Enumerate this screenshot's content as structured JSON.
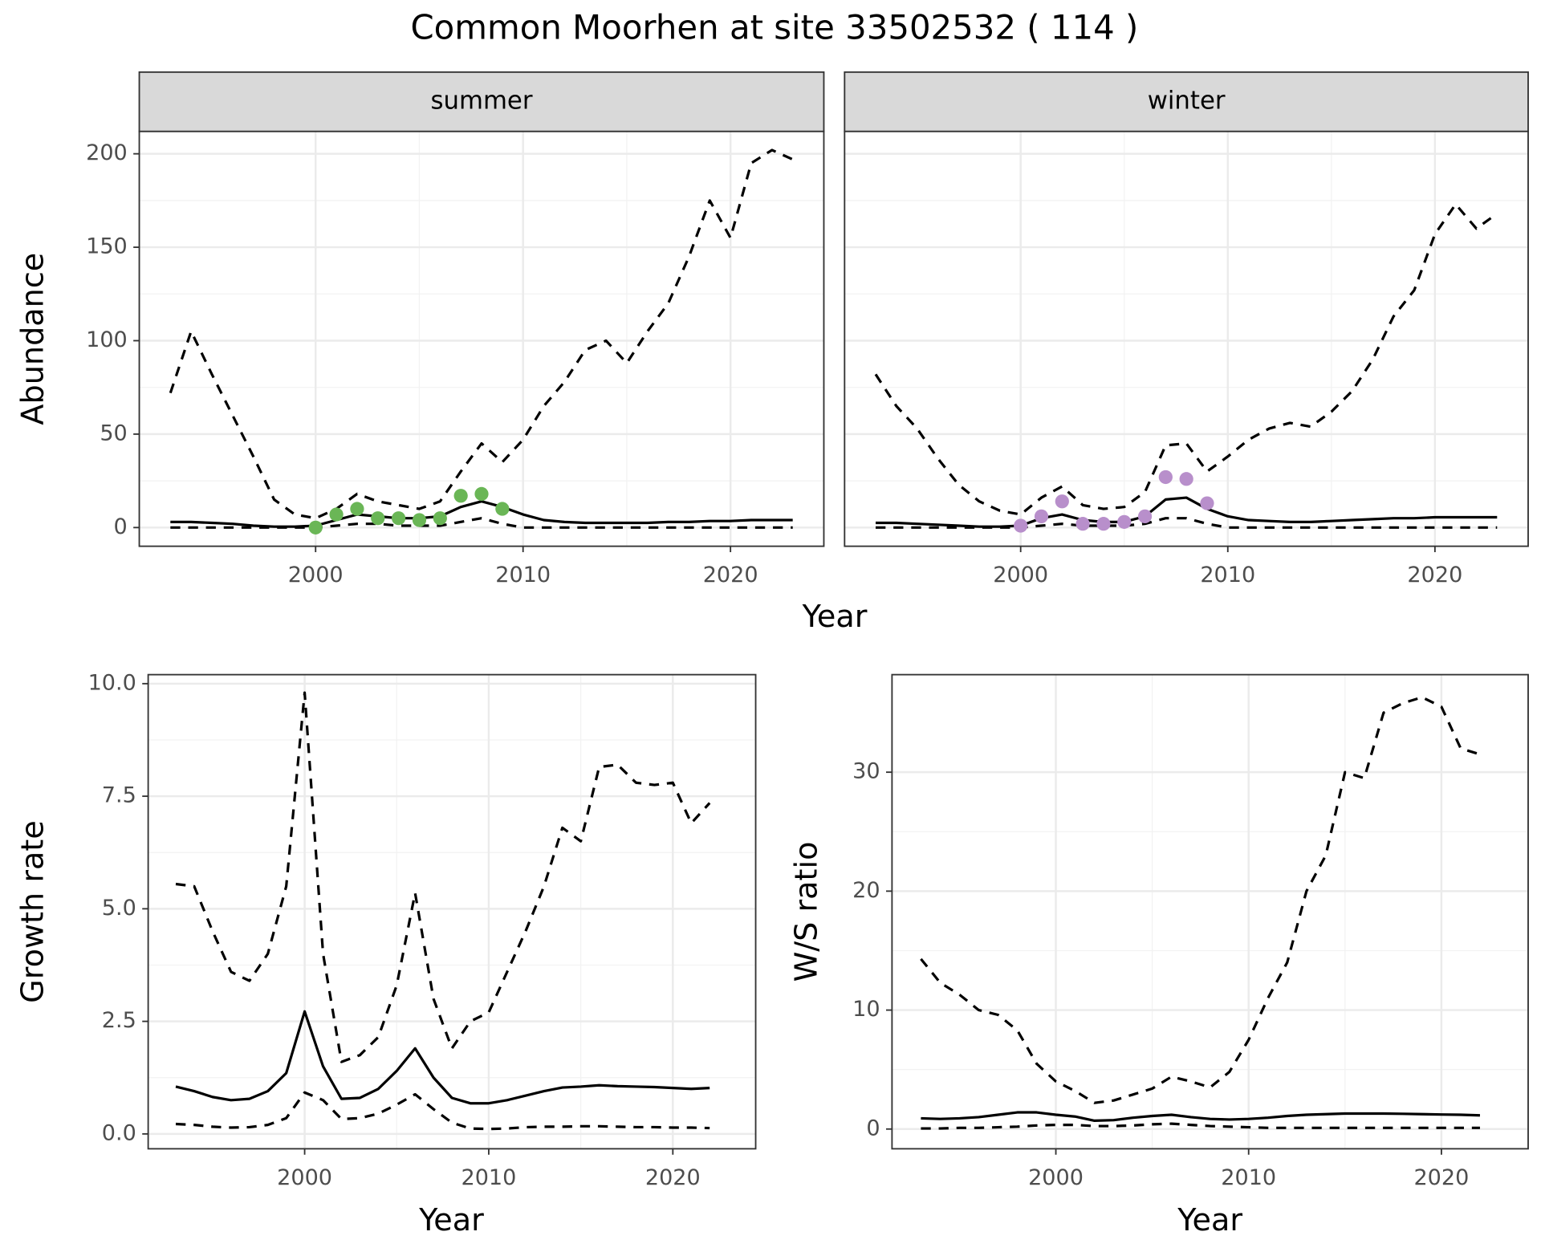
{
  "title": "Common Moorhen at site 33502532 ( 114 )",
  "chart_data": [
    {
      "type": "line",
      "title": "summer",
      "xlabel": "Year",
      "ylabel": "Abundance",
      "x": [
        1993,
        1994,
        1995,
        1996,
        1997,
        1998,
        1999,
        2000,
        2001,
        2002,
        2003,
        2004,
        2005,
        2006,
        2007,
        2008,
        2009,
        2010,
        2011,
        2012,
        2013,
        2014,
        2015,
        2016,
        2017,
        2018,
        2019,
        2020,
        2021,
        2022,
        2023
      ],
      "series": [
        {
          "color": "#000000",
          "dash": "solid",
          "values": [
            3,
            3,
            2.5,
            2,
            1,
            0.5,
            0.5,
            1,
            4,
            7,
            6,
            5,
            5,
            6,
            11,
            14,
            11,
            7,
            4,
            3,
            2.5,
            2.5,
            2.5,
            2.5,
            3,
            3,
            3.5,
            3.5,
            4,
            4,
            4
          ]
        },
        {
          "color": "#000000",
          "dash": "dashed",
          "values": [
            0,
            0,
            0,
            0,
            0,
            0,
            0,
            0,
            1,
            2,
            2,
            1,
            1,
            1,
            3,
            5,
            2,
            0,
            0,
            0,
            0,
            0,
            0,
            0,
            0,
            0,
            0,
            0,
            0,
            0,
            0
          ]
        },
        {
          "color": "#000000",
          "dash": "dashed",
          "values": [
            72,
            105,
            82,
            60,
            38,
            15,
            7,
            5,
            10,
            18,
            14,
            12,
            10,
            14,
            30,
            45,
            35,
            47,
            65,
            78,
            95,
            100,
            88,
            105,
            120,
            145,
            175,
            155,
            195,
            202,
            197
          ]
        },
        {
          "color": "#6ab656",
          "marker": "point",
          "x": [
            2000,
            2001,
            2002,
            2003,
            2004,
            2005,
            2006,
            2007,
            2008,
            2009
          ],
          "values": [
            0,
            7,
            10,
            5,
            5,
            4,
            5,
            17,
            18,
            10
          ]
        }
      ],
      "xlim": [
        1991.5,
        2024.5
      ],
      "ylim": [
        -10,
        212
      ],
      "xticks": [
        2000,
        2010,
        2020
      ],
      "yticks": [
        0,
        50,
        100,
        150,
        200
      ],
      "grid": true,
      "ytick_labels": true
    },
    {
      "type": "line",
      "title": "winter",
      "x": [
        1993,
        1994,
        1995,
        1996,
        1997,
        1998,
        1999,
        2000,
        2001,
        2002,
        2003,
        2004,
        2005,
        2006,
        2007,
        2008,
        2009,
        2010,
        2011,
        2012,
        2013,
        2014,
        2015,
        2016,
        2017,
        2018,
        2019,
        2020,
        2021,
        2022,
        2023
      ],
      "series": [
        {
          "color": "#000000",
          "dash": "solid",
          "values": [
            2.5,
            2.5,
            2,
            1.5,
            1,
            0.5,
            0.5,
            1,
            5,
            7,
            4,
            3,
            3,
            6,
            15,
            16,
            10,
            6,
            4,
            3.5,
            3,
            3,
            3.5,
            4,
            4.5,
            5,
            5,
            5.5,
            5.5,
            5.5,
            5.5
          ]
        },
        {
          "color": "#000000",
          "dash": "dashed",
          "values": [
            0,
            0,
            0,
            0,
            0,
            0,
            0,
            0,
            1,
            2,
            1,
            1,
            1,
            2,
            5,
            5,
            2,
            0,
            0,
            0,
            0,
            0,
            0,
            0,
            0,
            0,
            0,
            0,
            0,
            0,
            0
          ]
        },
        {
          "color": "#000000",
          "dash": "dashed",
          "values": [
            82,
            65,
            53,
            37,
            23,
            14,
            9,
            7,
            16,
            22,
            12,
            10,
            11,
            19,
            44,
            45,
            30,
            38,
            47,
            53,
            56,
            54,
            62,
            73,
            90,
            113,
            127,
            157,
            173,
            160,
            168
          ]
        },
        {
          "color": "#b88fcb",
          "marker": "point",
          "x": [
            2000,
            2001,
            2002,
            2003,
            2004,
            2005,
            2006,
            2007,
            2008,
            2009
          ],
          "values": [
            1,
            6,
            14,
            2,
            2,
            3,
            6,
            27,
            26,
            13
          ]
        }
      ],
      "xlim": [
        1991.5,
        2024.5
      ],
      "ylim": [
        -10,
        212
      ],
      "xticks": [
        2000,
        2010,
        2020
      ],
      "yticks": [
        0,
        50,
        100,
        150,
        200
      ],
      "grid": true,
      "ytick_labels": false
    },
    {
      "type": "line",
      "xlabel": "Year",
      "ylabel": "Growth rate",
      "x": [
        1993,
        1994,
        1995,
        1996,
        1997,
        1998,
        1999,
        2000,
        2001,
        2002,
        2003,
        2004,
        2005,
        2006,
        2007,
        2008,
        2009,
        2010,
        2011,
        2012,
        2013,
        2014,
        2015,
        2016,
        2017,
        2018,
        2019,
        2020,
        2021,
        2022
      ],
      "series": [
        {
          "color": "#000000",
          "dash": "solid",
          "values": [
            1.05,
            0.95,
            0.82,
            0.75,
            0.78,
            0.95,
            1.35,
            2.72,
            1.5,
            0.78,
            0.8,
            1.0,
            1.4,
            1.9,
            1.25,
            0.8,
            0.68,
            0.68,
            0.75,
            0.85,
            0.95,
            1.03,
            1.05,
            1.08,
            1.06,
            1.05,
            1.04,
            1.02,
            1.0,
            1.02
          ]
        },
        {
          "color": "#000000",
          "dash": "dashed",
          "values": [
            0.22,
            0.2,
            0.16,
            0.14,
            0.15,
            0.2,
            0.35,
            0.92,
            0.75,
            0.33,
            0.35,
            0.45,
            0.65,
            0.88,
            0.55,
            0.25,
            0.12,
            0.11,
            0.12,
            0.15,
            0.16,
            0.16,
            0.17,
            0.17,
            0.16,
            0.15,
            0.15,
            0.14,
            0.14,
            0.13
          ]
        },
        {
          "color": "#000000",
          "dash": "dashed",
          "values": [
            5.55,
            5.5,
            4.5,
            3.6,
            3.4,
            4.0,
            5.5,
            9.8,
            4.0,
            1.6,
            1.75,
            2.15,
            3.3,
            5.35,
            3.0,
            1.9,
            2.5,
            2.7,
            3.6,
            4.5,
            5.5,
            6.8,
            6.5,
            8.15,
            8.2,
            7.8,
            7.75,
            7.8,
            6.9,
            7.35
          ]
        }
      ],
      "xlim": [
        1991.5,
        2024.5
      ],
      "ylim": [
        -0.33,
        10.2
      ],
      "xticks": [
        2000,
        2010,
        2020
      ],
      "yticks": [
        {
          "value": 0,
          "label": "0.0"
        },
        2.5,
        {
          "value": 5,
          "label": "5.0"
        },
        7.5,
        {
          "value": 10,
          "label": "10.0"
        }
      ],
      "grid": true,
      "ytick_labels": true
    },
    {
      "type": "line",
      "xlabel": "Year",
      "ylabel": "W/S ratio",
      "x": [
        1993,
        1994,
        1995,
        1996,
        1997,
        1998,
        1999,
        2000,
        2001,
        2002,
        2003,
        2004,
        2005,
        2006,
        2007,
        2008,
        2009,
        2010,
        2011,
        2012,
        2013,
        2014,
        2015,
        2016,
        2017,
        2018,
        2019,
        2020,
        2021,
        2022
      ],
      "series": [
        {
          "color": "#000000",
          "dash": "solid",
          "values": [
            0.9,
            0.85,
            0.9,
            1,
            1.2,
            1.4,
            1.4,
            1.2,
            1.05,
            0.7,
            0.75,
            0.95,
            1.1,
            1.2,
            1.0,
            0.85,
            0.8,
            0.85,
            0.95,
            1.1,
            1.2,
            1.25,
            1.3,
            1.3,
            1.3,
            1.28,
            1.25,
            1.22,
            1.2,
            1.15
          ]
        },
        {
          "color": "#000000",
          "dash": "dashed",
          "values": [
            0.05,
            0.05,
            0.1,
            0.1,
            0.15,
            0.2,
            0.3,
            0.35,
            0.35,
            0.25,
            0.25,
            0.3,
            0.4,
            0.45,
            0.35,
            0.25,
            0.2,
            0.15,
            0.1,
            0.1,
            0.1,
            0.1,
            0.1,
            0.1,
            0.1,
            0.1,
            0.1,
            0.1,
            0.1,
            0.1
          ]
        },
        {
          "color": "#000000",
          "dash": "dashed",
          "values": [
            14.3,
            12.3,
            11.3,
            10,
            9.6,
            8.3,
            5.5,
            4,
            3.2,
            2.2,
            2.4,
            2.9,
            3.4,
            4.4,
            4,
            3.5,
            4.8,
            7.5,
            11,
            14,
            20,
            23,
            30,
            29.5,
            35,
            35.8,
            36.3,
            35.5,
            32,
            31.5
          ]
        }
      ],
      "xlim": [
        1991.5,
        2024.5
      ],
      "ylim": [
        -1.66,
        38.2
      ],
      "xticks": [
        2000,
        2010,
        2020
      ],
      "yticks": [
        0,
        10,
        20,
        30
      ],
      "grid": true,
      "ytick_labels": true
    }
  ]
}
